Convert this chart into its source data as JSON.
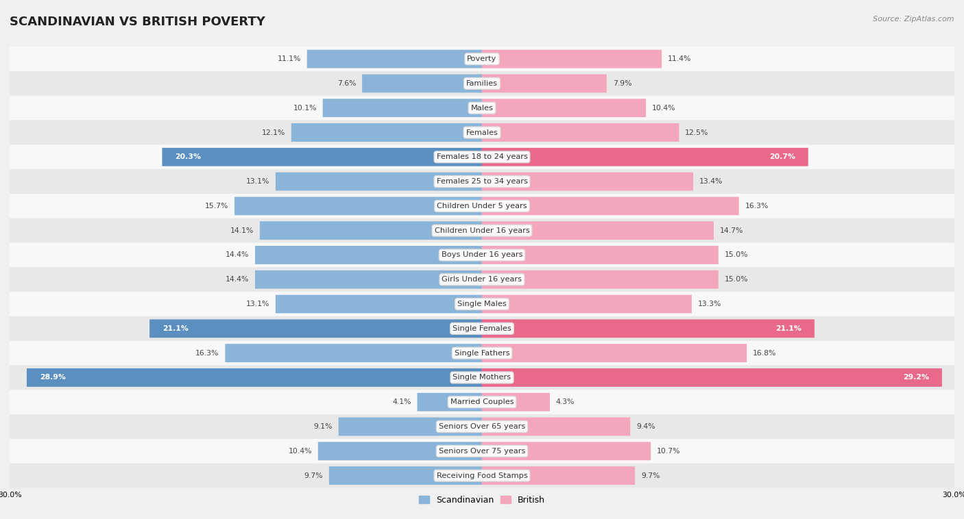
{
  "title": "SCANDINAVIAN VS BRITISH POVERTY",
  "source": "Source: ZipAtlas.com",
  "categories": [
    "Poverty",
    "Families",
    "Males",
    "Females",
    "Females 18 to 24 years",
    "Females 25 to 34 years",
    "Children Under 5 years",
    "Children Under 16 years",
    "Boys Under 16 years",
    "Girls Under 16 years",
    "Single Males",
    "Single Females",
    "Single Fathers",
    "Single Mothers",
    "Married Couples",
    "Seniors Over 65 years",
    "Seniors Over 75 years",
    "Receiving Food Stamps"
  ],
  "scandinavian": [
    11.1,
    7.6,
    10.1,
    12.1,
    20.3,
    13.1,
    15.7,
    14.1,
    14.4,
    14.4,
    13.1,
    21.1,
    16.3,
    28.9,
    4.1,
    9.1,
    10.4,
    9.7
  ],
  "british": [
    11.4,
    7.9,
    10.4,
    12.5,
    20.7,
    13.4,
    16.3,
    14.7,
    15.0,
    15.0,
    13.3,
    21.1,
    16.8,
    29.2,
    4.3,
    9.4,
    10.7,
    9.7
  ],
  "scand_color": "#8ab4d8",
  "british_color": "#f4a6bc",
  "scand_color_highlight": "#5b8fbf",
  "british_color_highlight": "#e8698a",
  "axis_max": 30.0,
  "background_color": "#f0f0f0",
  "row_bg_light": "#f8f8f8",
  "row_bg_dark": "#e8e8e8",
  "bar_height": 0.72,
  "highlight_threshold": 19.5,
  "title_fontsize": 13,
  "label_fontsize": 8.2,
  "value_fontsize": 7.8,
  "legend_fontsize": 9,
  "source_fontsize": 8
}
